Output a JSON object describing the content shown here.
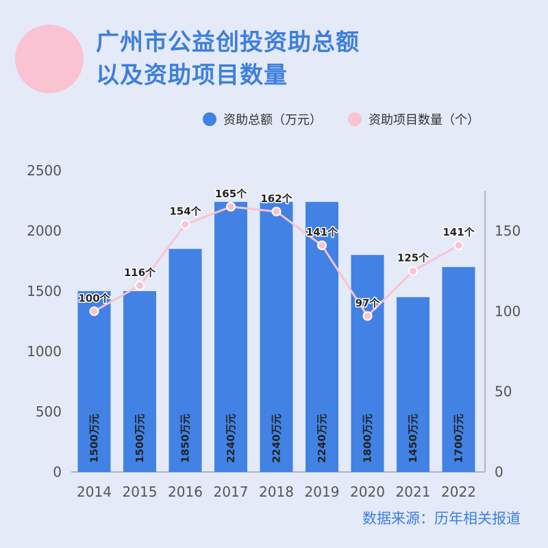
{
  "title_line1": "广州市公益创投资助总额",
  "title_line2": "以及资助项目数量",
  "source": "数据来源：历年相关报道",
  "colors": {
    "bar": "#4182e4",
    "line": "#f9c3d1",
    "title": "#3d7fdd",
    "background": "#e4eaf7"
  },
  "chart_data": {
    "type": "bar",
    "categories": [
      "2014",
      "2015",
      "2016",
      "2017",
      "2018",
      "2019",
      "2020",
      "2021",
      "2022"
    ],
    "series": [
      {
        "name": "资助总额（万元）",
        "type": "bar",
        "axis": "left",
        "values": [
          1500,
          1500,
          1850,
          2240,
          2240,
          2240,
          1800,
          1450,
          1700
        ],
        "labels": [
          "1500万元",
          "1500万元",
          "1850万元",
          "2240万元",
          "2240万元",
          "2240万元",
          "1800万元",
          "1450万元",
          "1700万元"
        ]
      },
      {
        "name": "资助项目数量（个）",
        "type": "line",
        "axis": "right",
        "values": [
          100,
          116,
          154,
          165,
          162,
          141,
          97,
          125,
          141
        ],
        "labels": [
          "100个",
          "116个",
          "154个",
          "165个",
          "162个",
          "141个",
          "97个",
          "125个",
          "141个"
        ]
      }
    ],
    "y_left": {
      "ticks": [
        "0",
        "500",
        "1000",
        "1500",
        "2000",
        "2500"
      ],
      "lim": [
        0,
        2500
      ]
    },
    "y_right": {
      "ticks": [
        "0",
        "50",
        "100",
        "150"
      ],
      "lim": [
        0,
        187.5
      ]
    },
    "legend_position": "top",
    "grid": false
  }
}
